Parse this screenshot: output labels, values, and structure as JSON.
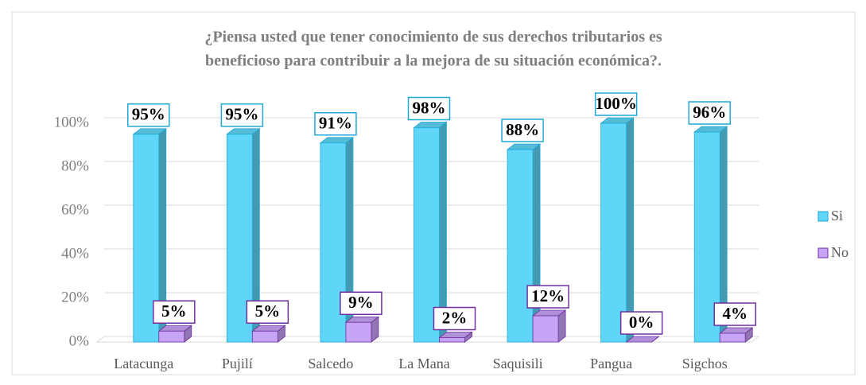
{
  "chart_data": {
    "type": "bar3d",
    "title": [
      "¿Piensa usted que tener conocimiento de sus derechos tributarios es",
      "beneficioso para contribuir a la mejora de su situación económica?."
    ],
    "categories": [
      "Latacunga",
      "Pujilí",
      "Salcedo",
      "La Mana",
      "Saquisili",
      "Pangua",
      "Sigchos"
    ],
    "series": [
      {
        "name": "Si",
        "color": "#5fd6f7",
        "values": [
          95,
          95,
          91,
          98,
          88,
          100,
          96
        ],
        "value_labels": [
          "95%",
          "95%",
          "91%",
          "98%",
          "88%",
          "100%",
          "96%"
        ]
      },
      {
        "name": "No",
        "color": "#c8a4f7",
        "values": [
          5,
          5,
          9,
          2,
          12,
          0,
          4
        ],
        "value_labels": [
          "5%",
          "5%",
          "9%",
          "2%",
          "12%",
          "0%",
          "4%"
        ]
      }
    ],
    "ylim": [
      0,
      100
    ],
    "yticks": [
      {
        "value": 0,
        "label": "0%"
      },
      {
        "value": 20,
        "label": "20%"
      },
      {
        "value": 40,
        "label": "40%"
      },
      {
        "value": 60,
        "label": "60%"
      },
      {
        "value": 80,
        "label": "80%"
      },
      {
        "value": 100,
        "label": "100%"
      }
    ],
    "grid": true,
    "legend": "right"
  }
}
